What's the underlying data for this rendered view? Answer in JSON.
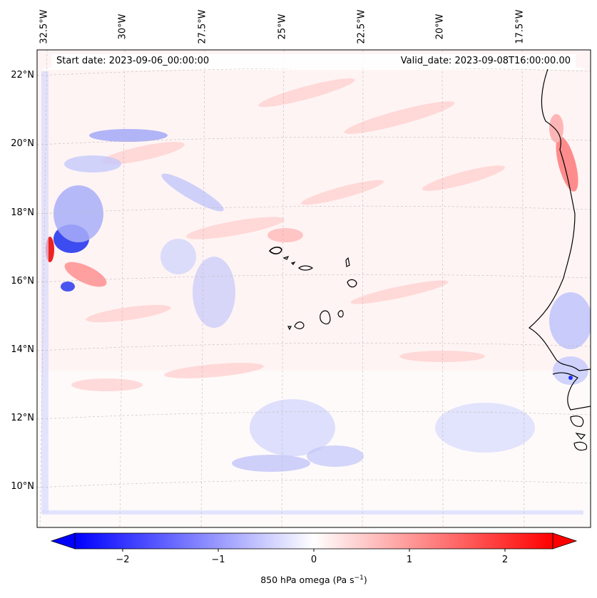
{
  "map": {
    "header_left": "Start date: 2023-09-06_00:00:00",
    "header_right": "Valid_date: 2023-09-08T16:00:00.00",
    "lon_labels": [
      "32.5°W",
      "30°W",
      "27.5°W",
      "25°W",
      "22.5°W",
      "20°W",
      "17.5°W"
    ],
    "lat_labels": [
      "22°N",
      "20°N",
      "18°N",
      "16°N",
      "14°N",
      "12°N",
      "10°N"
    ],
    "field": "850 hPa omega",
    "gridlines": true
  },
  "colorbar": {
    "cmap": "bwr",
    "vmin": -2.5,
    "vmax": 2.5,
    "extend": "both",
    "ticks": [
      "−2",
      "−1",
      "0",
      "1",
      "2"
    ],
    "label": "850 hPa omega (Pa s",
    "label_sup": "−1",
    "label_end": ")"
  },
  "colors": {
    "negative": "#0000ff",
    "positive": "#ff0000",
    "neutral": "#ffffff",
    "coast": "#000000",
    "grid": "#bbbbbb"
  }
}
